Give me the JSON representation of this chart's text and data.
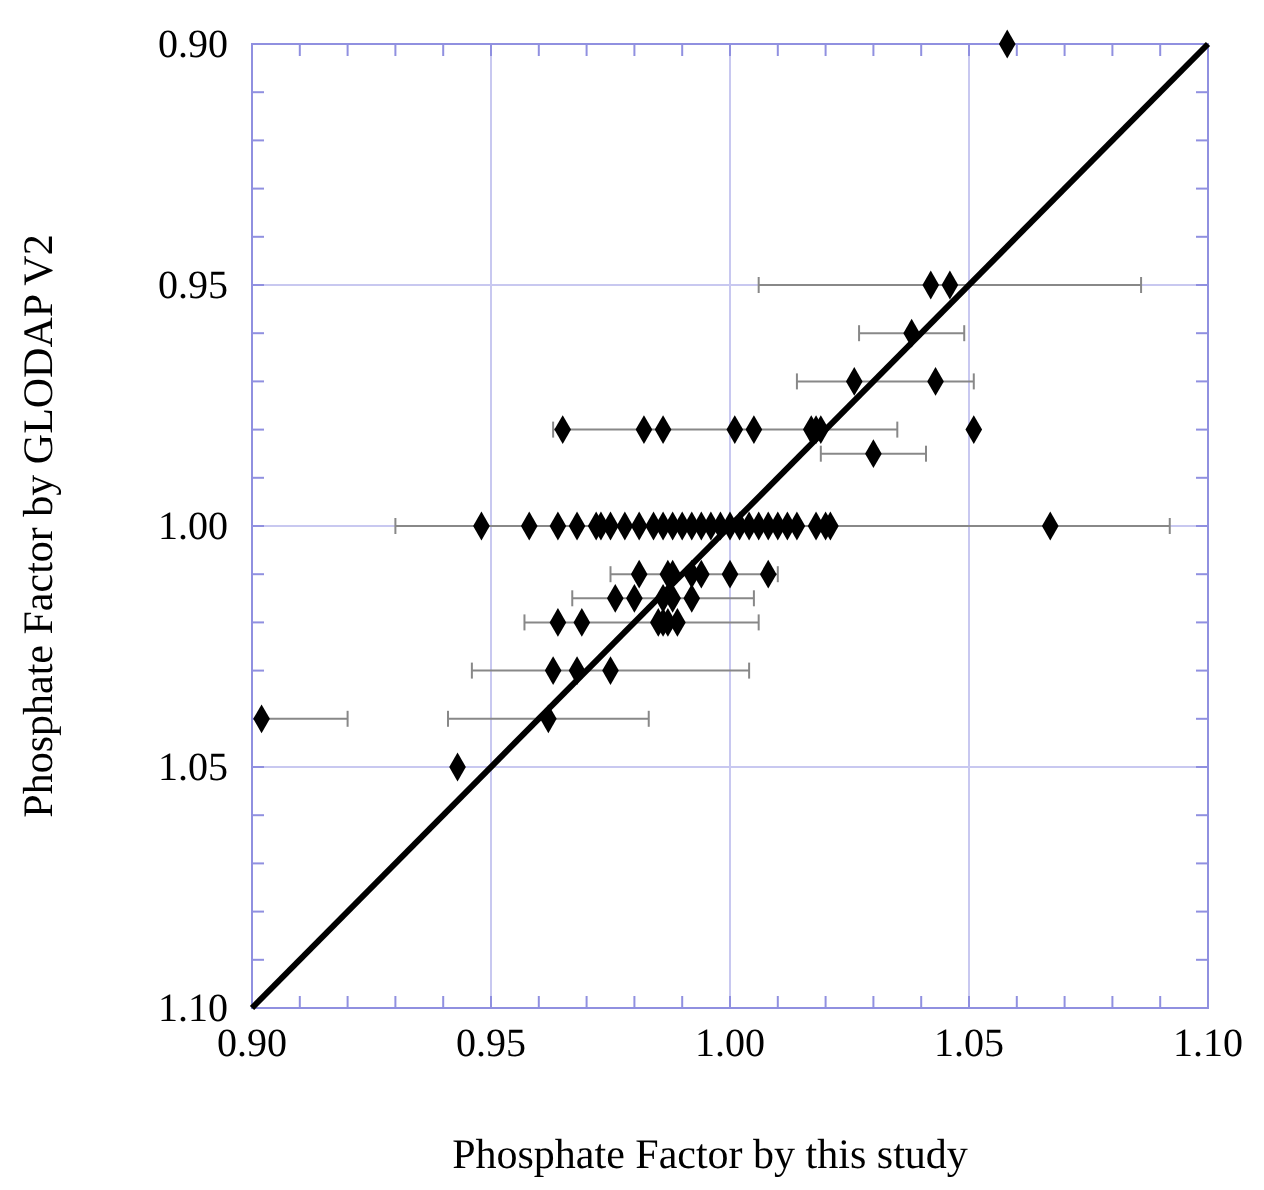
{
  "chart_data": {
    "type": "scatter",
    "xlabel": "Phosphate Factor by this study",
    "ylabel": "Phosphate Factor by GLODAP V2",
    "xlim": [
      0.9,
      1.1
    ],
    "ylim": [
      1.1,
      0.9
    ],
    "xticks": [
      {
        "value": 0.9,
        "label": "0.90"
      },
      {
        "value": 0.91,
        "label": null
      },
      {
        "value": 0.92,
        "label": null
      },
      {
        "value": 0.93,
        "label": null
      },
      {
        "value": 0.94,
        "label": null
      },
      {
        "value": 0.95,
        "label": "0.95"
      },
      {
        "value": 0.96,
        "label": null
      },
      {
        "value": 0.97,
        "label": null
      },
      {
        "value": 0.98,
        "label": null
      },
      {
        "value": 0.99,
        "label": null
      },
      {
        "value": 1.0,
        "label": "1.00"
      },
      {
        "value": 1.01,
        "label": null
      },
      {
        "value": 1.02,
        "label": null
      },
      {
        "value": 1.03,
        "label": null
      },
      {
        "value": 1.04,
        "label": null
      },
      {
        "value": 1.05,
        "label": "1.05"
      },
      {
        "value": 1.06,
        "label": null
      },
      {
        "value": 1.07,
        "label": null
      },
      {
        "value": 1.08,
        "label": null
      },
      {
        "value": 1.09,
        "label": null
      },
      {
        "value": 1.1,
        "label": "1.10"
      }
    ],
    "yticks": [
      {
        "value": 0.9,
        "label": "0.90"
      },
      {
        "value": 0.91,
        "label": null
      },
      {
        "value": 0.92,
        "label": null
      },
      {
        "value": 0.93,
        "label": null
      },
      {
        "value": 0.94,
        "label": null
      },
      {
        "value": 0.95,
        "label": "0.95"
      },
      {
        "value": 0.96,
        "label": null
      },
      {
        "value": 0.97,
        "label": null
      },
      {
        "value": 0.98,
        "label": null
      },
      {
        "value": 0.99,
        "label": null
      },
      {
        "value": 1.0,
        "label": "1.00"
      },
      {
        "value": 1.01,
        "label": null
      },
      {
        "value": 1.02,
        "label": null
      },
      {
        "value": 1.03,
        "label": null
      },
      {
        "value": 1.04,
        "label": null
      },
      {
        "value": 1.05,
        "label": "1.05"
      },
      {
        "value": 1.06,
        "label": null
      },
      {
        "value": 1.07,
        "label": null
      },
      {
        "value": 1.08,
        "label": null
      },
      {
        "value": 1.09,
        "label": null
      },
      {
        "value": 1.1,
        "label": "1.10"
      }
    ],
    "grid": true,
    "series": [
      {
        "marker": "diamond",
        "color": "#000000",
        "x": [
          1.058,
          1.042,
          1.046,
          1.038,
          1.026,
          1.043,
          0.965,
          0.982,
          0.986,
          1.001,
          1.005,
          1.017,
          1.018,
          1.019,
          1.051,
          1.03,
          0.948,
          0.958,
          0.964,
          0.968,
          0.972,
          0.973,
          0.975,
          0.978,
          0.981,
          0.984,
          0.986,
          0.988,
          0.99,
          0.992,
          0.994,
          0.996,
          0.998,
          1.0,
          1.002,
          1.004,
          1.006,
          1.008,
          1.01,
          1.012,
          1.014,
          1.018,
          1.02,
          1.021,
          1.067,
          0.981,
          0.987,
          0.988,
          0.992,
          0.994,
          1.0,
          1.008,
          0.976,
          0.98,
          0.986,
          0.988,
          0.992,
          0.964,
          0.969,
          0.985,
          0.986,
          0.987,
          0.989,
          0.963,
          0.968,
          0.975,
          0.902,
          0.962,
          0.943
        ],
        "values": [
          0.9,
          0.95,
          0.95,
          0.96,
          0.97,
          0.97,
          0.98,
          0.98,
          0.98,
          0.98,
          0.98,
          0.98,
          0.98,
          0.98,
          0.98,
          0.985,
          1.0,
          1.0,
          1.0,
          1.0,
          1.0,
          1.0,
          1.0,
          1.0,
          1.0,
          1.0,
          1.0,
          1.0,
          1.0,
          1.0,
          1.0,
          1.0,
          1.0,
          1.0,
          1.0,
          1.0,
          1.0,
          1.0,
          1.0,
          1.0,
          1.0,
          1.0,
          1.0,
          1.0,
          1.0,
          1.01,
          1.01,
          1.01,
          1.01,
          1.01,
          1.01,
          1.01,
          1.015,
          1.015,
          1.015,
          1.015,
          1.015,
          1.02,
          1.02,
          1.02,
          1.02,
          1.02,
          1.02,
          1.03,
          1.03,
          1.03,
          1.04,
          1.04,
          1.05
        ],
        "xerrors": [
          null,
          [
            1.006,
            1.086
          ],
          null,
          [
            1.027,
            1.049
          ],
          [
            1.014,
            1.051
          ],
          null,
          [
            0.963,
            1.035
          ],
          null,
          null,
          null,
          null,
          null,
          null,
          null,
          null,
          [
            1.019,
            1.041
          ],
          [
            0.93,
            1.092
          ],
          null,
          null,
          null,
          null,
          null,
          null,
          null,
          null,
          null,
          null,
          null,
          null,
          null,
          null,
          null,
          null,
          null,
          null,
          null,
          null,
          null,
          null,
          null,
          null,
          null,
          null,
          null,
          null,
          [
            0.975,
            1.01
          ],
          null,
          null,
          null,
          null,
          null,
          null,
          [
            0.967,
            1.005
          ],
          null,
          null,
          null,
          null,
          [
            0.957,
            1.006
          ],
          null,
          null,
          null,
          null,
          null,
          [
            0.946,
            1.004
          ],
          null,
          null,
          [
            0.902,
            0.92
          ],
          [
            0.941,
            0.983
          ],
          null
        ]
      },
      {
        "type": "line",
        "marker": "none",
        "color": "#000000",
        "x": [
          0.9,
          1.1
        ],
        "values": [
          1.1,
          0.9
        ]
      }
    ]
  }
}
